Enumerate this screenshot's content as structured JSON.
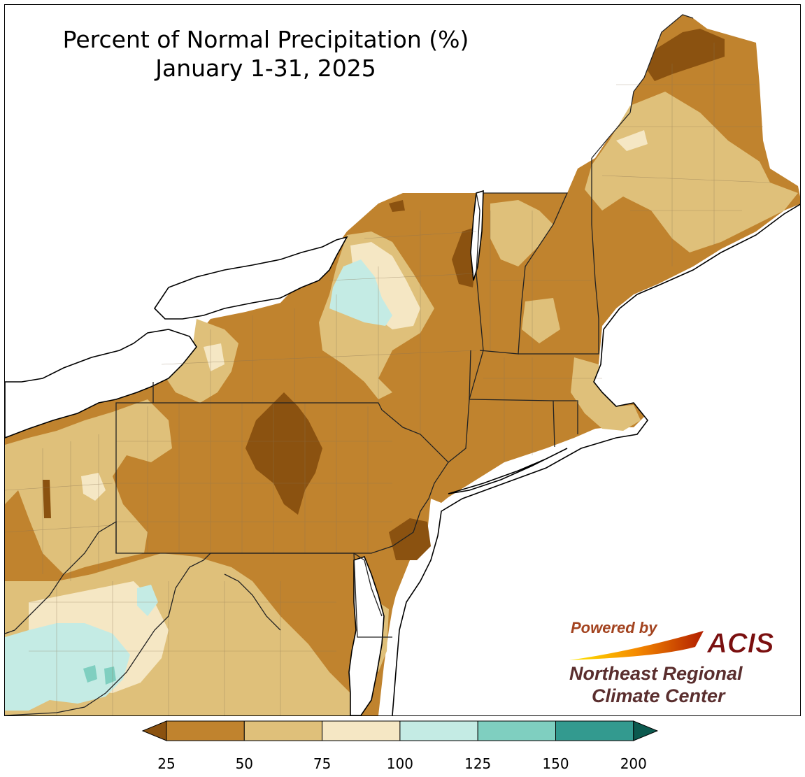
{
  "title": {
    "line1": "Percent of Normal Precipitation (%)",
    "line2": "January 1-31, 2025"
  },
  "legend": {
    "ticks": [
      "25",
      "50",
      "75",
      "100",
      "125",
      "150",
      "200"
    ],
    "bins": [
      {
        "range": "<25",
        "color": "#8b5210"
      },
      {
        "range": "25-50",
        "color": "#c0832e"
      },
      {
        "range": "50-75",
        "color": "#dfc07a"
      },
      {
        "range": "75-100",
        "color": "#f5e7c4"
      },
      {
        "range": "100-125",
        "color": "#c4ebe4"
      },
      {
        "range": "125-150",
        "color": "#7fcfc0"
      },
      {
        "range": "150-200",
        "color": "#339a8f"
      },
      {
        "range": ">200",
        "color": "#0c5a4f"
      }
    ]
  },
  "logo": {
    "powered_by": "Powered by",
    "acis": "ACIS",
    "org_line1": "Northeast Regional",
    "org_line2": "Climate Center"
  },
  "map": {
    "region": "Northeastern United States",
    "dominant_category": "25-50",
    "colors": {
      "water": "#ffffff",
      "border": "#000000",
      "county": "#7a6a55"
    }
  }
}
